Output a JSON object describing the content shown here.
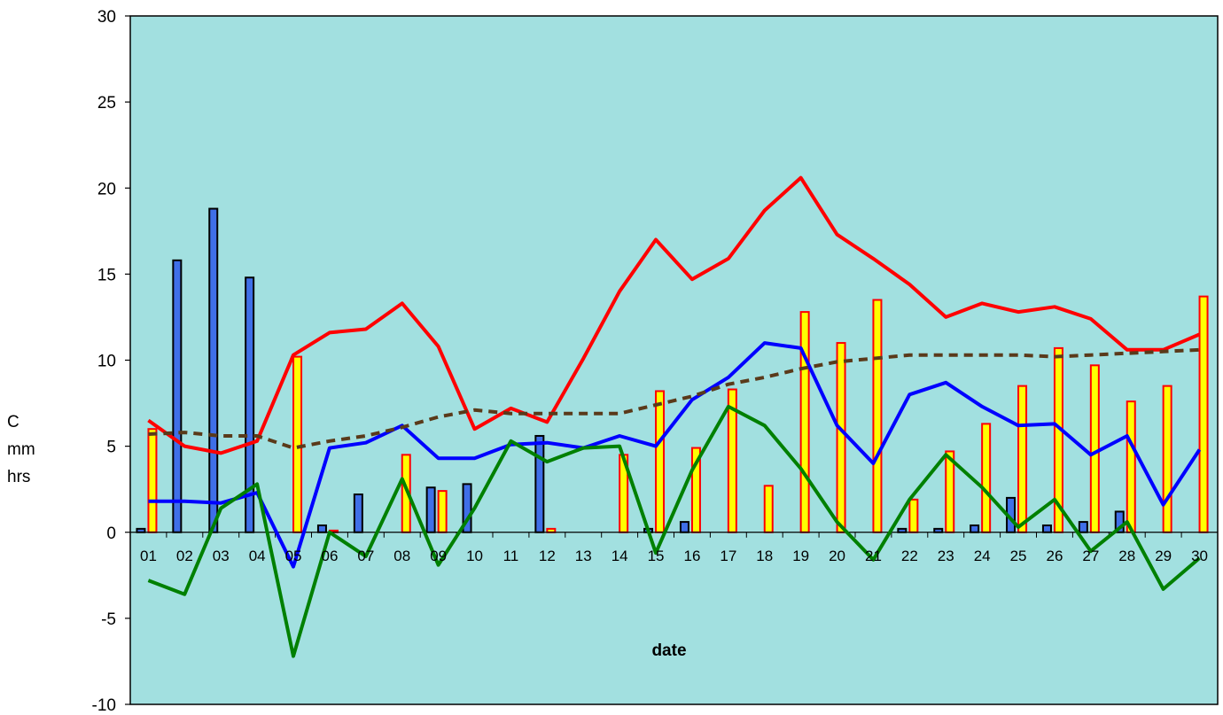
{
  "chart_data": {
    "type": "bar",
    "xlabel": "date",
    "ylabel_lines": [
      "C",
      "mm",
      "hrs"
    ],
    "ylim": [
      -10,
      30
    ],
    "yticks": [
      -10,
      -5,
      0,
      5,
      10,
      15,
      20,
      25,
      30
    ],
    "categories": [
      "01",
      "02",
      "03",
      "04",
      "05",
      "06",
      "07",
      "08",
      "09",
      "10",
      "11",
      "12",
      "13",
      "14",
      "15",
      "16",
      "17",
      "18",
      "19",
      "20",
      "21",
      "22",
      "23",
      "24",
      "25",
      "26",
      "27",
      "28",
      "29",
      "30"
    ],
    "plot_background": "#a2e0e0",
    "bar_series": [
      {
        "color": "#3f6fe8",
        "stroke": "#000000",
        "values": [
          0.2,
          15.8,
          18.8,
          14.8,
          0,
          0.4,
          2.2,
          0,
          2.6,
          2.8,
          0,
          5.6,
          0,
          0,
          0.2,
          0.6,
          0,
          0,
          0,
          0,
          0,
          0.2,
          0.2,
          0.4,
          2.0,
          0.4,
          0.6,
          1.2,
          0,
          0
        ]
      },
      {
        "color": "#ffff00",
        "stroke": "#ff0000",
        "values": [
          6.0,
          0,
          0,
          0,
          10.2,
          0.1,
          0,
          4.5,
          2.4,
          0,
          0,
          0.2,
          0,
          4.5,
          8.2,
          4.9,
          8.3,
          2.7,
          12.8,
          11.0,
          13.5,
          1.9,
          4.7,
          6.3,
          8.5,
          10.7,
          9.7,
          7.6,
          8.5,
          13.7
        ]
      }
    ],
    "line_series": [
      {
        "color": "#ff0000",
        "dashed": false,
        "values": [
          6.5,
          5.0,
          4.6,
          5.3,
          10.3,
          11.6,
          11.8,
          13.3,
          10.8,
          6.0,
          7.2,
          6.4,
          10.1,
          14.0,
          17.0,
          14.7,
          15.9,
          18.7,
          20.6,
          17.3,
          15.9,
          14.4,
          12.5,
          13.3,
          12.8,
          13.1,
          12.4,
          10.6,
          10.6,
          11.5
        ]
      },
      {
        "color": "#0000ff",
        "dashed": false,
        "values": [
          1.8,
          1.8,
          1.7,
          2.3,
          -2.0,
          4.9,
          5.2,
          6.2,
          4.3,
          4.3,
          5.1,
          5.2,
          4.9,
          5.6,
          5.0,
          7.7,
          9.0,
          11.0,
          10.7,
          6.2,
          4.0,
          8.0,
          8.7,
          7.3,
          6.2,
          6.3,
          4.5,
          5.6,
          1.6,
          4.8
        ]
      },
      {
        "color": "#008000",
        "dashed": false,
        "values": [
          -2.8,
          -3.6,
          1.4,
          2.8,
          -7.2,
          0,
          -1.4,
          3.1,
          -1.9,
          1.4,
          5.3,
          4.1,
          4.9,
          5.0,
          -1.2,
          3.6,
          7.3,
          6.2,
          3.7,
          0.6,
          -1.6,
          1.9,
          4.5,
          2.6,
          0.3,
          1.9,
          -1.1,
          0.6,
          -3.3,
          -1.5
        ]
      },
      {
        "color": "#5a3a1a",
        "dashed": true,
        "values": [
          5.7,
          5.8,
          5.6,
          5.6,
          4.9,
          5.3,
          5.6,
          6.1,
          6.7,
          7.1,
          6.9,
          6.9,
          6.9,
          6.9,
          7.4,
          7.9,
          8.6,
          9.0,
          9.5,
          9.9,
          10.1,
          10.3,
          10.3,
          10.3,
          10.3,
          10.2,
          10.3,
          10.4,
          10.5,
          10.6
        ]
      }
    ]
  }
}
